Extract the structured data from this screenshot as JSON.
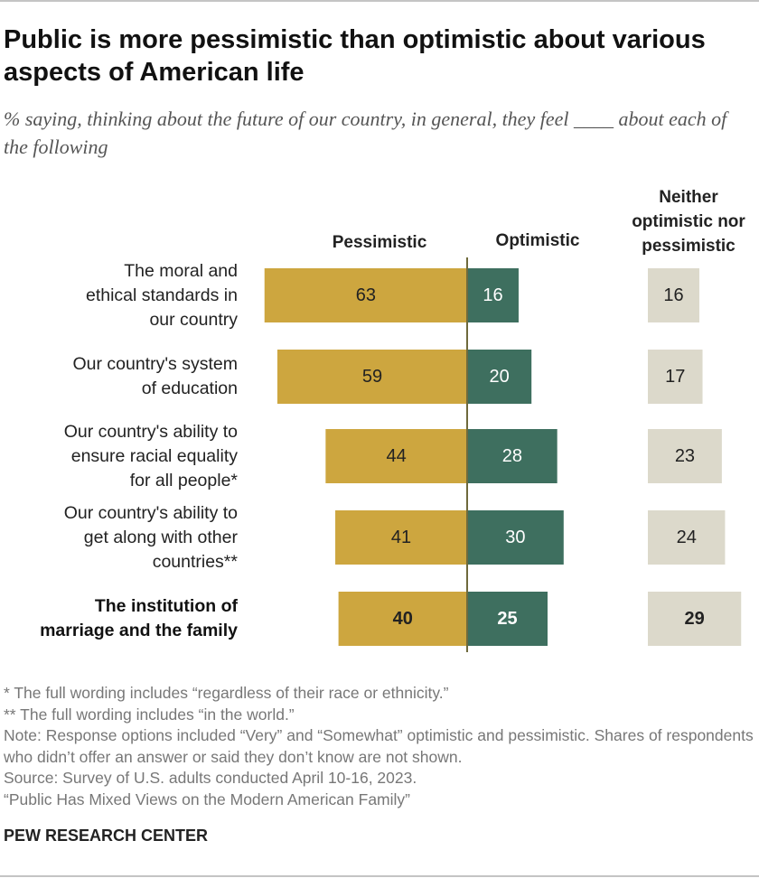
{
  "chart_data": {
    "type": "diverging_bar",
    "title": "Public is more pessimistic than optimistic about various aspects of American life",
    "subtitle": "% saying, thinking about the future of our country, in general, they feel ____ about each of the following",
    "categories": [
      "The moral and\nethical standards in\nour country",
      "Our country's system\nof education",
      "Our country's ability to\nensure racial equality\nfor all people*",
      "Our country's ability to\nget along with other\ncountries**",
      "The institution of\nmarriage and the family"
    ],
    "bold_rows": [
      4
    ],
    "series": [
      {
        "name": "Pessimistic",
        "color": "#cda63f",
        "values": [
          63,
          59,
          44,
          41,
          40
        ]
      },
      {
        "name": "Optimistic",
        "color": "#3e6f5f",
        "values": [
          16,
          20,
          28,
          30,
          25
        ]
      },
      {
        "name": "Neither optimistic nor pessimistic",
        "color": "#dcd9cb",
        "values": [
          16,
          17,
          23,
          24,
          29
        ]
      }
    ],
    "notes": [
      "* The full wording includes “regardless of their race or ethnicity.”",
      "** The full wording includes “in the world.”",
      "Note: Response options included “Very” and “Somewhat” optimistic and pessimistic. Shares of respondents who didn’t offer an answer or said they don’t know are not shown.",
      "Source: Survey of U.S. adults conducted April 10-16, 2023.",
      "“Public Has Mixed Views on the Modern American Family”"
    ],
    "source_org": "PEW RESEARCH CENTER"
  }
}
